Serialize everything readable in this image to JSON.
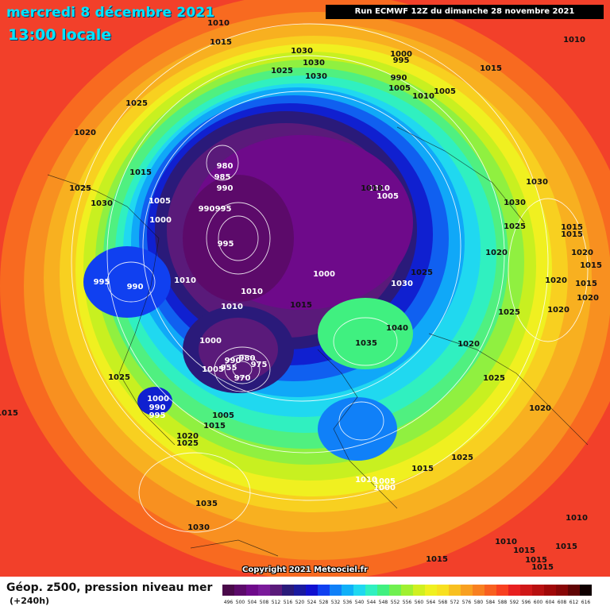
{
  "header": {
    "date": "mercredi 8 décembre 2021",
    "time": "13:00 locale",
    "run": "Run ECMWF 12Z du dimanche 28 novembre 2021"
  },
  "footer": {
    "copyright": "Copyright 2021 Meteociel.fr",
    "legend_title": "Géop. z500, pression niveau mer",
    "legend_sub": "(+240h)"
  },
  "scale": {
    "values": [
      "496",
      "500",
      "504",
      "508",
      "512",
      "516",
      "520",
      "524",
      "528",
      "532",
      "536",
      "540",
      "544",
      "548",
      "552",
      "556",
      "560",
      "564",
      "568",
      "572",
      "576",
      "580",
      "584",
      "588",
      "592",
      "596",
      "600",
      "604",
      "608",
      "612",
      "616"
    ],
    "colors": [
      "#4a0a4a",
      "#5c0a6a",
      "#6e0a8a",
      "#7a1a9a",
      "#5a1a7a",
      "#2a1a7a",
      "#1a1aa0",
      "#1010d0",
      "#1040f0",
      "#1080f8",
      "#10b0f8",
      "#20d8f0",
      "#30f0c0",
      "#40f080",
      "#70f050",
      "#a0f030",
      "#d0f020",
      "#f0f020",
      "#f8e020",
      "#f8c020",
      "#f8a020",
      "#f88020",
      "#f86020",
      "#f84020",
      "#e82020",
      "#d01818",
      "#b81010",
      "#a00808",
      "#880606",
      "#600404",
      "#100000"
    ]
  },
  "pressure_labels": [
    "1010",
    "1015",
    "1030",
    "1030",
    "1030",
    "1025",
    "1000",
    "995",
    "990",
    "1005",
    "1010",
    "1005",
    "1015",
    "1010",
    "1025",
    "1020",
    "980",
    "985",
    "990",
    "990",
    "995",
    "1015",
    "1025",
    "1030",
    "1005",
    "1000",
    "995",
    "995",
    "990",
    "1010",
    "1010",
    "1010",
    "1005",
    "1000",
    "1030",
    "1025",
    "1030",
    "1030",
    "1025",
    "1015",
    "1015",
    "1020",
    "1020",
    "1020",
    "1015",
    "1020",
    "1010",
    "1015",
    "1010",
    "1000",
    "990",
    "980",
    "975",
    "970",
    "955",
    "1005",
    "1000",
    "1040",
    "1035",
    "1025",
    "1020",
    "1025",
    "1020",
    "1025",
    "1020",
    "990",
    "995",
    "1005",
    "1015",
    "1020",
    "1025",
    "1035",
    "1030",
    "1015",
    "1010",
    "1005",
    "1000",
    "1025",
    "1010",
    "1015",
    "1015",
    "1015",
    "1015",
    "1010",
    "1015",
    "1015",
    "1015"
  ],
  "colors": {
    "title": "#00e5ff",
    "banner_bg": "#000000"
  }
}
